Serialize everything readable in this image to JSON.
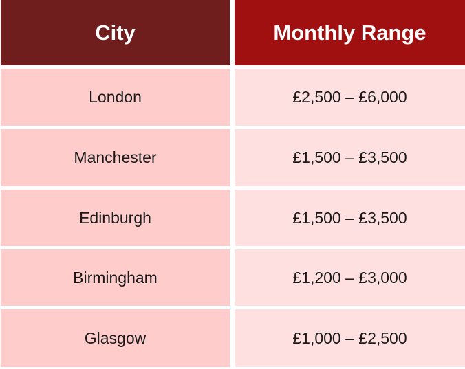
{
  "table": {
    "headers": {
      "city": "City",
      "range": "Monthly Range"
    },
    "rows": [
      {
        "city": "London",
        "range": "£2,500 – £6,000"
      },
      {
        "city": "Manchester",
        "range": "£1,500 – £3,500"
      },
      {
        "city": "Edinburgh",
        "range": "£1,500 – £3,500"
      },
      {
        "city": "Birmingham",
        "range": "£1,200 – £3,000"
      },
      {
        "city": "Glasgow",
        "range": "£1,000 – £2,500"
      }
    ]
  },
  "colors": {
    "header_city_bg": "#6f1d1d",
    "header_range_bg": "#a01010",
    "city_cell_bg": "#ffcccc",
    "range_cell_bg": "#ffe0e0"
  }
}
